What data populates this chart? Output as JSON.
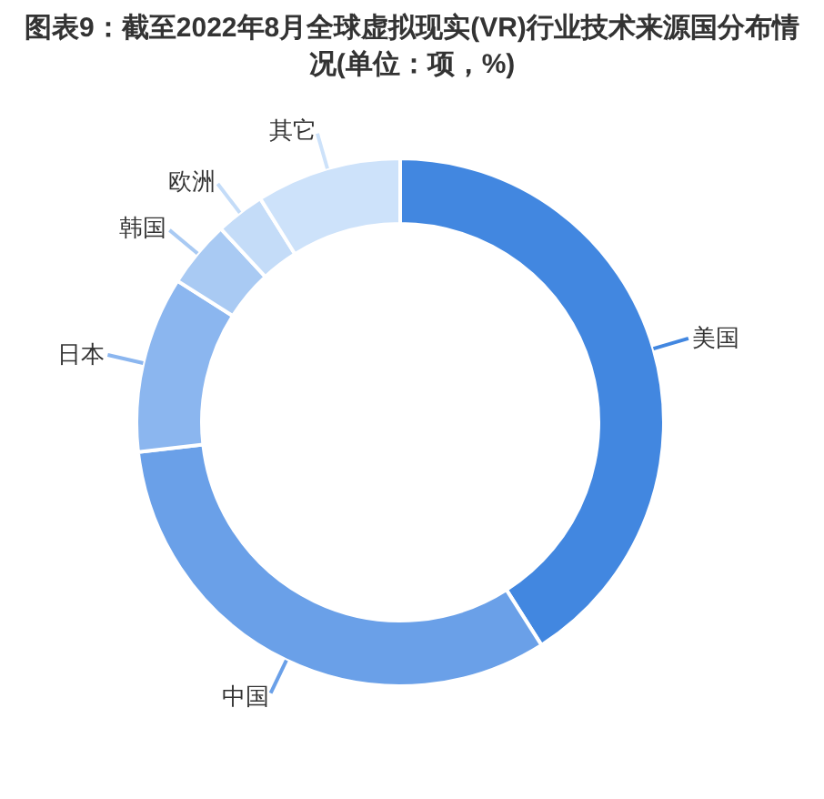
{
  "chart_data": {
    "type": "donut",
    "title": "图表9：截至2022年8月全球虚拟现实(VR)行业技术来源国分布情况(单位：项，%)",
    "categories": [
      "美国",
      "中国",
      "日本",
      "韩国",
      "欧洲",
      "其它"
    ],
    "values": [
      41,
      32.2,
      10.8,
      4.1,
      3.0,
      8.9
    ],
    "colors": [
      "#4287e0",
      "#6aa0e8",
      "#8bb6ef",
      "#a9caf3",
      "#c4dcf8",
      "#cde2fa"
    ],
    "legend": false
  }
}
